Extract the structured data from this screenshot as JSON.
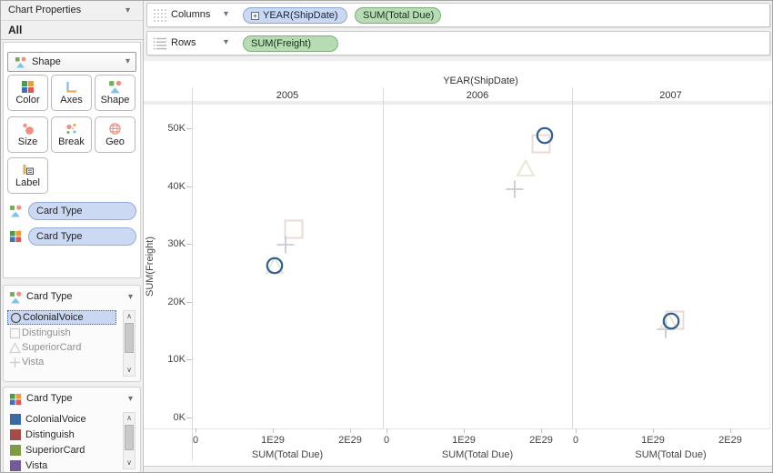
{
  "icons": {
    "dropdown_chevron": "▾",
    "scroll_up": "∧",
    "scroll_down": "∨",
    "expand_plus": "+"
  },
  "sidebar": {
    "title": "Chart Properties",
    "section_all": "All",
    "mark_type": {
      "value": "Shape"
    },
    "buttons": {
      "color": "Color",
      "axes": "Axes",
      "shape": "Shape",
      "size": "Size",
      "break": "Break",
      "geo": "Geo",
      "label": "Label"
    },
    "wells": {
      "shape_field": "Card Type",
      "color_field": "Card Type"
    },
    "shape_legend": {
      "title": "Card Type",
      "items": [
        {
          "label": "ColonialVoice",
          "shape": "circle",
          "selected": true
        },
        {
          "label": "Distinguish",
          "shape": "square",
          "selected": false
        },
        {
          "label": "SuperiorCard",
          "shape": "triangle",
          "selected": false
        },
        {
          "label": "Vista",
          "shape": "plus",
          "selected": false
        }
      ]
    },
    "color_legend": {
      "title": "Card Type",
      "items": [
        {
          "label": "ColonialVoice",
          "color": "#3a6ba5"
        },
        {
          "label": "Distinguish",
          "color": "#a34c48"
        },
        {
          "label": "SuperiorCard",
          "color": "#7d9b45"
        },
        {
          "label": "Vista",
          "color": "#74599b"
        }
      ]
    }
  },
  "shelves": {
    "columns": {
      "label": "Columns",
      "pills": [
        {
          "text": "YEAR(ShipDate)",
          "kind": "dimension",
          "expandable": true,
          "color": "#c9d8f3"
        },
        {
          "text": "SUM(Total Due)",
          "kind": "measure",
          "expandable": false,
          "color": "#b7dcb4"
        }
      ]
    },
    "rows": {
      "label": "Rows",
      "pills": [
        {
          "text": "SUM(Freight)",
          "kind": "measure",
          "expandable": false,
          "color": "#b7dcb4"
        }
      ]
    }
  },
  "chart_data": {
    "type": "scatter",
    "title": "YEAR(ShipDate)",
    "facet_by": "YEAR(ShipDate)",
    "categories": [
      "2005",
      "2006",
      "2007"
    ],
    "xlabel": "SUM(Total Due)",
    "ylabel": "SUM(Freight)",
    "x_ticks": [
      {
        "label": "0",
        "value_e29": 0
      },
      {
        "label": "1E29",
        "value_e29": 1
      },
      {
        "label": "2E29",
        "value_e29": 2
      }
    ],
    "y_ticks": [
      {
        "label": "50K",
        "value_k": 50
      },
      {
        "label": "40K",
        "value_k": 40
      },
      {
        "label": "30K",
        "value_k": 30
      },
      {
        "label": "20K",
        "value_k": 20
      },
      {
        "label": "10K",
        "value_k": 10
      },
      {
        "label": "0K",
        "value_k": 0
      }
    ],
    "xlim_e29": [
      0,
      2.45
    ],
    "ylim_k": [
      0,
      54
    ],
    "grid": false,
    "shape_colors": {
      "circle": "#2e5f97",
      "square": "#ecd9d3",
      "triangle": "#e3e3cc",
      "plus": "#c7cad7"
    },
    "series": [
      {
        "name": "ColonialVoice",
        "shape": "circle",
        "points": [
          {
            "year": "2005",
            "x_e29": 1.02,
            "y_k": 26.3
          },
          {
            "year": "2006",
            "x_e29": 2.05,
            "y_k": 48.8
          },
          {
            "year": "2007",
            "x_e29": 1.24,
            "y_k": 16.7
          }
        ]
      },
      {
        "name": "Distinguish",
        "shape": "square",
        "points": [
          {
            "year": "2005",
            "x_e29": 1.27,
            "y_k": 32.5
          },
          {
            "year": "2006",
            "x_e29": 2.0,
            "y_k": 47.3
          },
          {
            "year": "2007",
            "x_e29": 1.28,
            "y_k": 16.9
          }
        ]
      },
      {
        "name": "SuperiorCard",
        "shape": "triangle",
        "points": [
          {
            "year": "2005",
            "x_e29": 1.02,
            "y_k": 26.3
          },
          {
            "year": "2006",
            "x_e29": 1.8,
            "y_k": 43.1
          },
          {
            "year": "2007",
            "x_e29": 1.2,
            "y_k": 16.7
          }
        ]
      },
      {
        "name": "Vista",
        "shape": "plus",
        "points": [
          {
            "year": "2005",
            "x_e29": 1.16,
            "y_k": 29.9
          },
          {
            "year": "2006",
            "x_e29": 1.66,
            "y_k": 39.5
          },
          {
            "year": "2007",
            "x_e29": 1.17,
            "y_k": 15.3
          }
        ]
      }
    ]
  }
}
